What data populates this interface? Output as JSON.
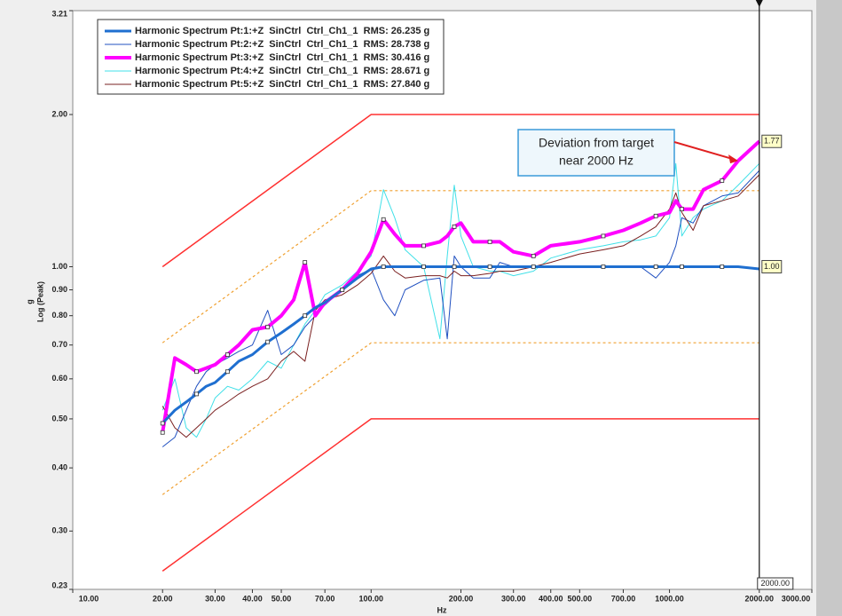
{
  "chart_data": {
    "type": "line",
    "log_x": true,
    "log_y": true,
    "xlabel": "Hz",
    "ylabel": [
      "g",
      "Log (Peak)"
    ],
    "legend": "upper left",
    "xlim": [
      10,
      3000
    ],
    "ylim": [
      0.23,
      3.21
    ],
    "xticks": [
      {
        "value": 10,
        "label": "10.00"
      },
      {
        "value": 20,
        "label": "20.00"
      },
      {
        "value": 30,
        "label": "30.00"
      },
      {
        "value": 40,
        "label": "40.00"
      },
      {
        "value": 50,
        "label": "50.00"
      },
      {
        "value": 70,
        "label": "70.00"
      },
      {
        "value": 100,
        "label": "100.00"
      },
      {
        "value": 200,
        "label": "200.00"
      },
      {
        "value": 300,
        "label": "300.00"
      },
      {
        "value": 400,
        "label": "400.00"
      },
      {
        "value": 500,
        "label": "500.00"
      },
      {
        "value": 700,
        "label": "700.00"
      },
      {
        "value": 1000,
        "label": "1000.00"
      },
      {
        "value": 2000,
        "label": "2000.00"
      },
      {
        "value": 3000,
        "label": "3000.00"
      }
    ],
    "yticks": [
      0.23,
      {
        "value": 0.3,
        "label": "0.30"
      },
      {
        "value": 0.4,
        "label": "0.40"
      },
      {
        "value": 0.5,
        "label": "0.50"
      },
      {
        "value": 0.6,
        "label": "0.60"
      },
      {
        "value": 0.7,
        "label": "0.70"
      },
      {
        "value": 0.8,
        "label": "0.80"
      },
      {
        "value": 0.9,
        "label": "0.90"
      },
      {
        "value": 1.0,
        "label": "1.00"
      },
      {
        "value": 2.0,
        "label": "2.00"
      },
      3.21
    ],
    "x": [
      20,
      22,
      24,
      26,
      28,
      30,
      33,
      36,
      40,
      45,
      50,
      55,
      60,
      65,
      70,
      80,
      90,
      100,
      110,
      120,
      130,
      150,
      170,
      180,
      190,
      200,
      220,
      250,
      270,
      300,
      350,
      400,
      500,
      600,
      700,
      800,
      900,
      1000,
      1050,
      1100,
      1200,
      1300,
      1500,
      1700,
      2000
    ],
    "series": [
      {
        "name": "Harmonic Spectrum Pt:1:+Z  SinCtrl  Ctrl_Ch1_1  RMS: 26.235 g",
        "color": "#1f6fd0",
        "linewidth": 3,
        "markers": true,
        "values": [
          0.49,
          0.52,
          0.54,
          0.56,
          0.58,
          0.59,
          0.62,
          0.65,
          0.67,
          0.71,
          0.74,
          0.77,
          0.8,
          0.83,
          0.85,
          0.9,
          0.95,
          0.99,
          1.0,
          1.0,
          1.0,
          1.0,
          1.0,
          1.0,
          1.0,
          1.0,
          1.0,
          1.0,
          1.0,
          1.0,
          1.0,
          1.0,
          1.0,
          1.0,
          1.0,
          1.0,
          1.0,
          1.0,
          1.0,
          1.0,
          1.0,
          1.0,
          1.0,
          1.0,
          0.99
        ]
      },
      {
        "name": "Harmonic Spectrum Pt:2:+Z  SinCtrl  Ctrl_Ch1_1  RMS: 28.738 g",
        "color": "#2050c0",
        "linewidth": 1,
        "values": [
          0.44,
          0.46,
          0.52,
          0.58,
          0.62,
          0.64,
          0.66,
          0.68,
          0.7,
          0.82,
          0.67,
          0.7,
          0.76,
          0.8,
          0.84,
          0.9,
          0.96,
          0.99,
          0.86,
          0.8,
          0.9,
          0.94,
          0.95,
          0.72,
          1.05,
          1.0,
          0.95,
          0.95,
          1.02,
          1.0,
          1.0,
          1.0,
          1.0,
          1.0,
          1.0,
          1.0,
          0.95,
          1.02,
          1.1,
          1.25,
          1.22,
          1.32,
          1.38,
          1.4,
          1.55
        ]
      },
      {
        "name": "Harmonic Spectrum Pt:3:+Z  SinCtrl  Ctrl_Ch1_1  RMS: 30.416 g",
        "color": "#ff00ff",
        "linewidth": 4,
        "markers": true,
        "values": [
          0.47,
          0.66,
          0.64,
          0.62,
          0.63,
          0.64,
          0.67,
          0.7,
          0.75,
          0.76,
          0.8,
          0.86,
          1.02,
          0.8,
          0.85,
          0.9,
          0.97,
          1.07,
          1.24,
          1.16,
          1.1,
          1.1,
          1.12,
          1.15,
          1.2,
          1.22,
          1.12,
          1.12,
          1.12,
          1.07,
          1.05,
          1.1,
          1.12,
          1.15,
          1.18,
          1.22,
          1.26,
          1.28,
          1.35,
          1.3,
          1.3,
          1.42,
          1.48,
          1.62,
          1.77
        ]
      },
      {
        "name": "Harmonic Spectrum Pt:4:+Z  SinCtrl  Ctrl_Ch1_1  RMS: 28.671 g",
        "color": "#40e0e8",
        "linewidth": 1,
        "values": [
          0.52,
          0.6,
          0.48,
          0.46,
          0.5,
          0.55,
          0.58,
          0.57,
          0.6,
          0.65,
          0.63,
          0.7,
          0.77,
          0.82,
          0.88,
          0.92,
          0.98,
          1.05,
          1.42,
          1.25,
          1.08,
          1.0,
          0.72,
          1.05,
          1.45,
          1.15,
          1.0,
          0.98,
          0.98,
          0.96,
          0.98,
          1.04,
          1.08,
          1.1,
          1.12,
          1.13,
          1.15,
          1.25,
          1.6,
          1.15,
          1.25,
          1.3,
          1.35,
          1.45,
          1.6
        ]
      },
      {
        "name": "Harmonic Spectrum Pt:5:+Z  SinCtrl  Ctrl_Ch1_1  RMS: 27.840 g",
        "color": "#7a2020",
        "linewidth": 1,
        "values": [
          0.53,
          0.48,
          0.46,
          0.48,
          0.5,
          0.52,
          0.54,
          0.56,
          0.58,
          0.6,
          0.65,
          0.68,
          0.65,
          0.82,
          0.86,
          0.88,
          0.92,
          0.97,
          1.05,
          0.98,
          0.95,
          0.96,
          0.96,
          0.95,
          0.98,
          0.96,
          0.96,
          0.97,
          0.98,
          0.98,
          1.0,
          1.02,
          1.06,
          1.08,
          1.1,
          1.15,
          1.2,
          1.3,
          1.4,
          1.28,
          1.18,
          1.32,
          1.35,
          1.38,
          1.52
        ]
      }
    ],
    "limit_lines": [
      {
        "color": "#ff3030",
        "dashed": false,
        "x": [
          20,
          100,
          2000
        ],
        "values": [
          1.0,
          2.0,
          2.0
        ]
      },
      {
        "color": "#f0a030",
        "dashed": true,
        "x": [
          20,
          100,
          2000
        ],
        "values": [
          0.707,
          1.414,
          1.414
        ]
      },
      {
        "color": "#f0a030",
        "dashed": true,
        "x": [
          20,
          100,
          2000
        ],
        "values": [
          0.354,
          0.707,
          0.707
        ]
      },
      {
        "color": "#ff3030",
        "dashed": false,
        "x": [
          20,
          100,
          2000
        ],
        "values": [
          0.25,
          0.5,
          0.5
        ]
      }
    ],
    "cursor": {
      "x": {
        "value": 2000,
        "label": "2000.00"
      },
      "readouts": [
        1.77,
        {
          "value": 1.0,
          "label": "1.00"
        }
      ]
    },
    "annotation": {
      "lines": [
        "Deviation from target",
        "near 2000 Hz"
      ],
      "x": 1700,
      "y": 1.62
    }
  }
}
